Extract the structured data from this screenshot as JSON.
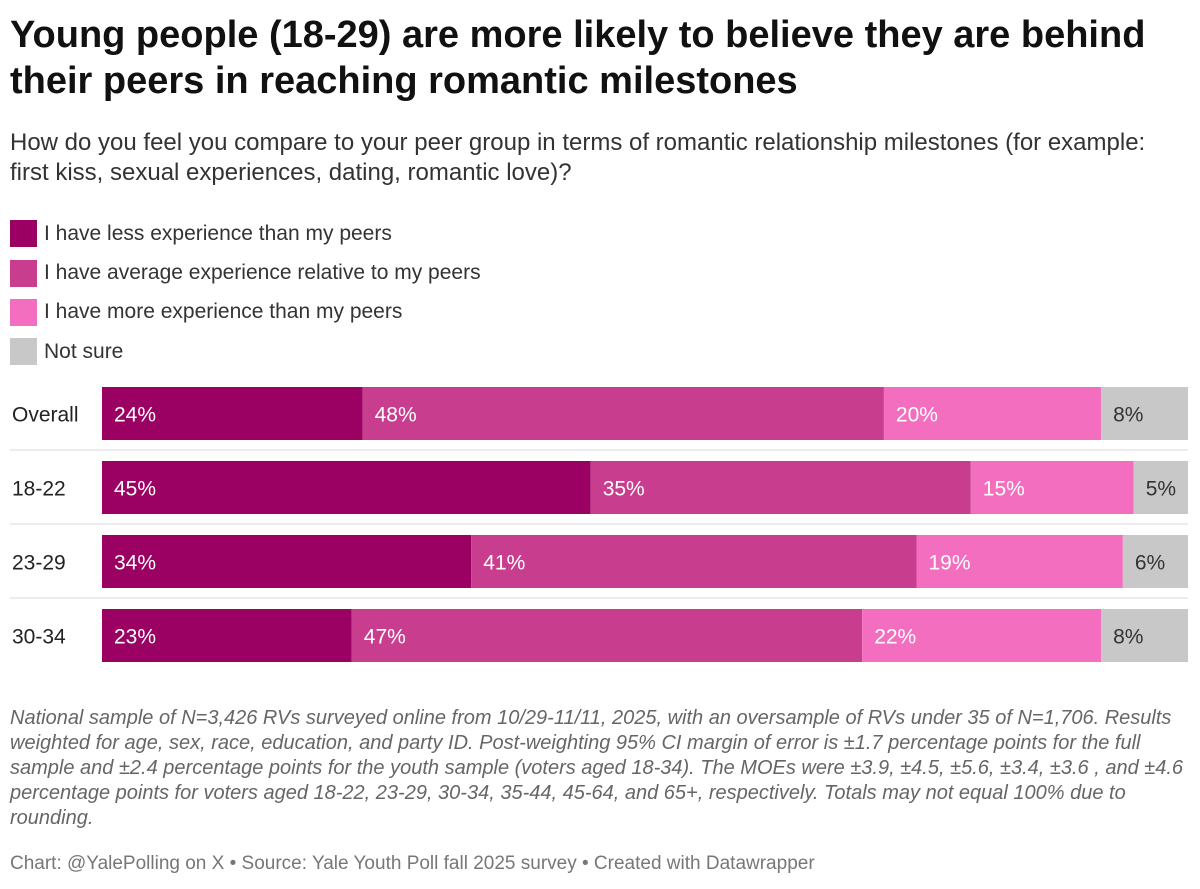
{
  "title": "Young people (18-29) are more likely to believe they are behind their peers in reaching romantic milestones",
  "subtitle": "How do you feel you compare to your peer group in terms of romantic relationship milestones (for example: first kiss, sexual experiences, dating, romantic love)?",
  "legend": [
    {
      "label": "I have less experience than my peers",
      "color": "#9b0063"
    },
    {
      "label": "I have average experience relative to my peers",
      "color": "#c93d8f"
    },
    {
      "label": "I have more experience than my peers",
      "color": "#f46ebf"
    },
    {
      "label": "Not sure",
      "color": "#c8c8c8"
    }
  ],
  "chart_data": {
    "type": "bar",
    "orientation": "horizontal",
    "stacked": true,
    "categories": [
      "Overall",
      "18-22",
      "23-29",
      "30-34"
    ],
    "series": [
      {
        "name": "I have less experience than my peers",
        "color": "#9b0063",
        "values": [
          24,
          45,
          34,
          23
        ],
        "labels": [
          "24%",
          "45%",
          "34%",
          "23%"
        ],
        "label_color": "#ffffff"
      },
      {
        "name": "I have average experience relative to my peers",
        "color": "#c93d8f",
        "values": [
          48,
          35,
          41,
          47
        ],
        "labels": [
          "48%",
          "35%",
          "41%",
          "47%"
        ],
        "label_color": "#ffffff"
      },
      {
        "name": "I have more experience than my peers",
        "color": "#f46ebf",
        "values": [
          20,
          15,
          19,
          22
        ],
        "labels": [
          "20%",
          "15%",
          "19%",
          "22%"
        ],
        "label_color": "#ffffff"
      },
      {
        "name": "Not sure",
        "color": "#c8c8c8",
        "values": [
          8,
          5,
          6,
          8
        ],
        "labels": [
          "8%",
          "5%",
          "6%",
          "8%"
        ],
        "label_color": "#333333"
      }
    ],
    "xlim": [
      0,
      100
    ],
    "title": "Young people (18-29) are more likely to believe they are behind their peers in reaching romantic milestones"
  },
  "notes": "National sample of N=3,426 RVs surveyed online from 10/29-11/11, 2025, with an oversample of RVs under 35 of N=1,706. Results weighted for age, sex, race, education, and party ID. Post-weighting 95% CI margin of error is ±1.7 percentage points for the full sample and ±2.4 percentage points for the youth sample (voters aged 18-34). The MOEs were ±3.9, ±4.5, ±5.6, ±3.4, ±3.6 , and ±4.6 percentage points for voters aged 18-22, 23-29, 30-34, 35-44, 45-64, and 65+, respectively. Totals may not equal 100% due to rounding.",
  "source": "Chart: @YalePolling on X • Source: Yale Youth Poll fall 2025 survey • Created with Datawrapper"
}
